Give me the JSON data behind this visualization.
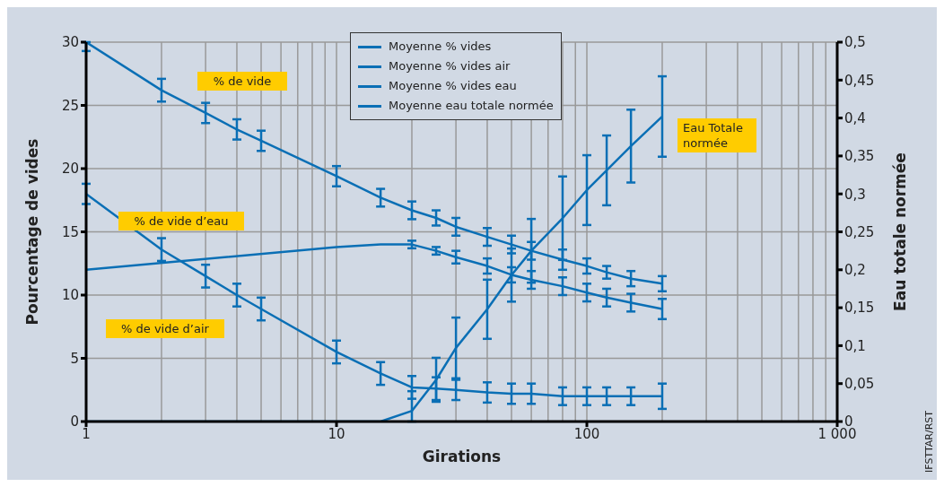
{
  "chart_data": {
    "type": "line",
    "xlabel": "Girations",
    "ylabel": "Pourcentage de vides",
    "y2label": "Eau totale normée",
    "log": "x",
    "grid": true,
    "legend": "top",
    "xlim": [
      1,
      1000
    ],
    "xticks": [
      1,
      10,
      100,
      {
        "value": 1000,
        "label": "1 000"
      }
    ],
    "ylim": [
      0,
      30
    ],
    "yticks": [
      0,
      5,
      10,
      15,
      20,
      25,
      30
    ],
    "y2lim": [
      0,
      0.5
    ],
    "y2ticks": [
      0,
      {
        "value": 0.05,
        "label": "0,05"
      },
      {
        "value": 0.1,
        "label": "0,1"
      },
      {
        "value": 0.15,
        "label": "0,15"
      },
      {
        "value": 0.2,
        "label": "0,2"
      },
      {
        "value": 0.25,
        "label": "0,25"
      },
      {
        "value": 0.3,
        "label": "0,3"
      },
      {
        "value": 0.35,
        "label": "0,35"
      },
      {
        "value": 0.4,
        "label": "0,4"
      },
      {
        "value": 0.45,
        "label": "0,45"
      },
      {
        "value": 0.5,
        "label": "0,5"
      }
    ],
    "series": [
      {
        "name": "Moyenne % vides",
        "color": "#0a6fb5",
        "x": [
          1,
          2,
          3,
          4,
          5,
          10,
          15,
          20,
          25,
          30,
          40,
          50,
          60,
          80,
          100,
          120,
          150,
          200
        ],
        "values": [
          30,
          26.2,
          24.4,
          23.1,
          22.2,
          19.4,
          17.7,
          16.7,
          16.1,
          15.4,
          14.6,
          14.0,
          13.5,
          12.8,
          12.3,
          11.8,
          11.3,
          10.9
        ],
        "errors": [
          [
            29.3,
            30
          ],
          0.9,
          0.8,
          0.8,
          0.8,
          0.8,
          0.7,
          0.7,
          0.6,
          0.7,
          0.7,
          0.7,
          0.7,
          0.8,
          0.6,
          0.5,
          0.6,
          0.6
        ]
      },
      {
        "name": "Moyenne % vides air",
        "color": "#0a6fb5",
        "x": [
          1,
          10,
          15,
          20,
          25,
          30,
          40,
          50,
          60,
          80,
          100,
          120,
          150,
          200
        ],
        "values": [
          12.0,
          13.8,
          14.0,
          14.0,
          13.5,
          13.0,
          12.3,
          11.6,
          11.2,
          10.7,
          10.2,
          9.8,
          9.4,
          8.9
        ],
        "errors": [
          null,
          null,
          null,
          0.3,
          0.3,
          0.5,
          0.6,
          0.6,
          0.7,
          0.7,
          0.7,
          0.7,
          0.7,
          0.8
        ]
      },
      {
        "name": "Moyenne % vides eau",
        "color": "#0a6fb5",
        "x": [
          1,
          2,
          3,
          4,
          5,
          10,
          15,
          20,
          25,
          30,
          40,
          50,
          60,
          80,
          100,
          120,
          150,
          200
        ],
        "values": [
          18.0,
          13.6,
          11.5,
          10.0,
          8.9,
          5.5,
          3.8,
          2.7,
          2.6,
          2.5,
          2.3,
          2.2,
          2.2,
          2.0,
          2.0,
          2.0,
          2.0,
          2.0
        ],
        "errors": [
          0.8,
          0.9,
          0.9,
          0.9,
          0.9,
          0.9,
          0.9,
          0.9,
          0.9,
          0.8,
          0.8,
          0.8,
          0.8,
          0.7,
          0.7,
          0.7,
          0.7,
          1.0
        ]
      },
      {
        "name": "Moyenne eau totale normée",
        "color": "#0a6fb5",
        "axis": "y2",
        "x": [
          1,
          15,
          20,
          25,
          30,
          40,
          50,
          60,
          80,
          100,
          120,
          150,
          200
        ],
        "values": [
          0,
          0,
          0.014,
          0.055,
          0.097,
          0.148,
          0.193,
          0.225,
          0.268,
          0.305,
          0.331,
          0.363,
          0.402
        ],
        "errors": [
          null,
          null,
          [
            0,
            0.04
          ],
          0.029,
          0.04,
          0.039,
          0.035,
          0.042,
          0.055,
          0.046,
          0.046,
          0.048,
          0.053
        ]
      }
    ],
    "annotations": [
      "% de vide",
      "% de vide d’eau",
      "% de vide d’air",
      "Eau Totale normée",
      "IFSTTAR/RST"
    ]
  }
}
